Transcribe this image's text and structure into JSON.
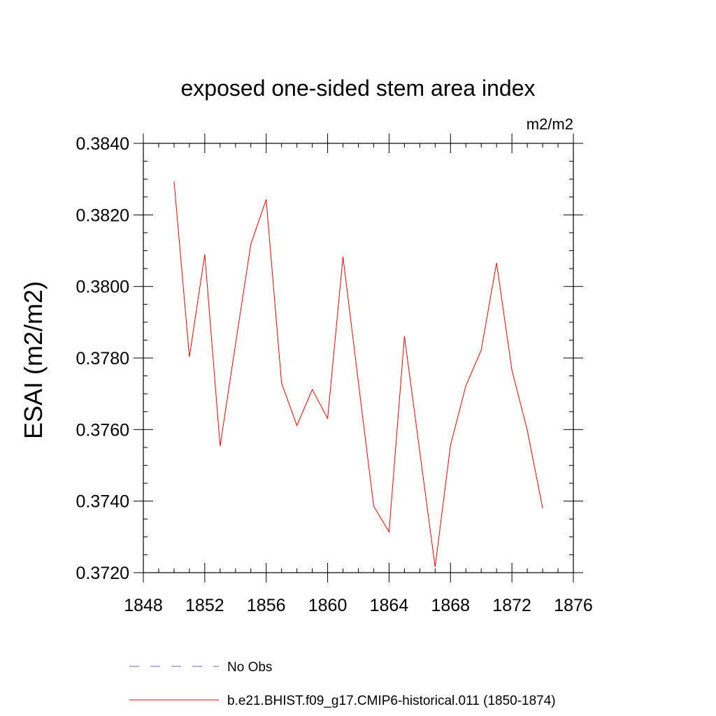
{
  "chart_data": {
    "type": "line",
    "title": "exposed one-sided stem area index",
    "units": "m2/m2",
    "ylabel": "ESAI  (m2/m2)",
    "xlabel": "",
    "xlim": [
      1848,
      1876
    ],
    "ylim": [
      0.372,
      0.384
    ],
    "x_ticks": [
      1848,
      1852,
      1856,
      1860,
      1864,
      1868,
      1872,
      1876
    ],
    "y_ticks": [
      "0.3720",
      "0.3740",
      "0.3760",
      "0.3780",
      "0.3800",
      "0.3820",
      "0.3840"
    ],
    "x": [
      1850,
      1851,
      1852,
      1853,
      1854,
      1855,
      1856,
      1857,
      1858,
      1859,
      1860,
      1861,
      1862,
      1863,
      1864,
      1865,
      1866,
      1867,
      1868,
      1869,
      1870,
      1871,
      1872,
      1873,
      1874
    ],
    "series": [
      {
        "name": "b.e21.BHIST.f09_g17.CMIP6-historical.011 (1850-1874)",
        "color": "#ff0000",
        "style": "solid",
        "values": [
          0.38294,
          0.37803,
          0.3809,
          0.37554,
          0.37838,
          0.38118,
          0.38243,
          0.3773,
          0.37611,
          0.37712,
          0.37631,
          0.38083,
          0.37733,
          0.37386,
          0.37314,
          0.37861,
          0.37538,
          0.37216,
          0.37556,
          0.37722,
          0.37822,
          0.38066,
          0.37766,
          0.37598,
          0.3738
        ]
      }
    ],
    "legend": [
      {
        "label": "No Obs",
        "color": "#6666bb",
        "style": "dashed"
      },
      {
        "label": "b.e21.BHIST.f09_g17.CMIP6-historical.011 (1850-1874)",
        "color": "#ff0000",
        "style": "solid"
      }
    ]
  }
}
